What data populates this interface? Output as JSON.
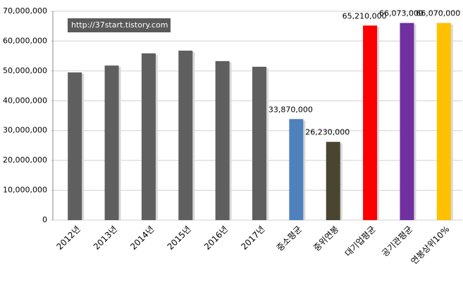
{
  "chart_data": {
    "type": "bar",
    "annotation": "http://37start.tistory.com",
    "categories": [
      "2012년",
      "2013년",
      "2014년",
      "2015년",
      "2016년",
      "2017년",
      "중소평균",
      "중위연봉",
      "대기업평균",
      "공기관평균",
      "연봉상위10%"
    ],
    "values": [
      49500000,
      51800000,
      55900000,
      56800000,
      53300000,
      51400000,
      33870000,
      26230000,
      65210000,
      66073000,
      66070000
    ],
    "value_labels": [
      null,
      null,
      null,
      null,
      null,
      null,
      "33,870,000",
      "26,230,000",
      "65,210,000",
      "66,073,000",
      "66,070,000"
    ],
    "colors": [
      "#5f5f5f",
      "#5f5f5f",
      "#5f5f5f",
      "#5f5f5f",
      "#5f5f5f",
      "#5f5f5f",
      "#4f81bd",
      "#4a4530",
      "#ff0000",
      "#7030a0",
      "#ffc000"
    ],
    "ylim": [
      0,
      70000000
    ],
    "yticks": [
      0,
      {
        "value": 10000000,
        "label": "10,000,000"
      },
      {
        "value": 20000000,
        "label": "20,000,000"
      },
      {
        "value": 30000000,
        "label": "30,000,000"
      },
      {
        "value": 40000000,
        "label": "40,000,000"
      },
      {
        "value": 50000000,
        "label": "50,000,000"
      },
      {
        "value": 60000000,
        "label": "60,000,000"
      },
      {
        "value": 70000000,
        "label": "70,000,000"
      }
    ],
    "grid": true
  }
}
